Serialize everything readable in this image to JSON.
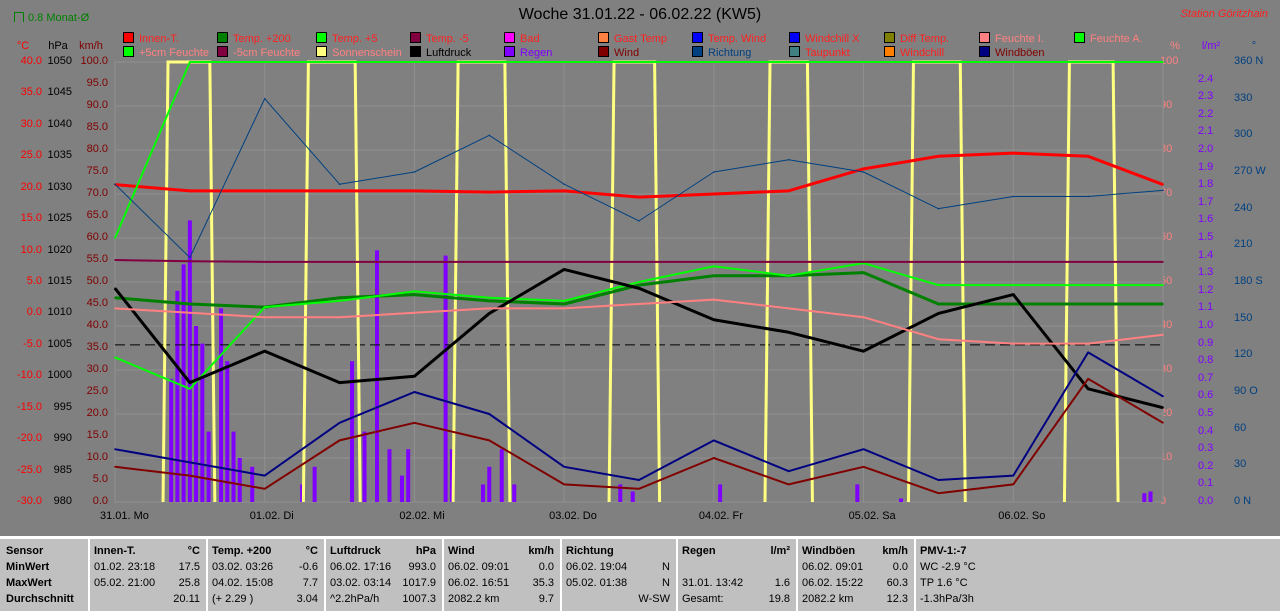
{
  "header": {
    "title": "Woche 31.01.22 - 06.02.22 (KW5)",
    "station": "Station Göritzhain",
    "month_avg": "0.8 Monat-Ø"
  },
  "legend": [
    [
      {
        "label": "Innen-T.",
        "color": "#ff0000",
        "text": "#ff2020"
      },
      {
        "label": "+5cm Feuchte",
        "color": "#00ff00",
        "text": "#ff8080"
      }
    ],
    [
      {
        "label": "Temp. +200",
        "color": "#008000",
        "text": "#ff2020"
      },
      {
        "label": "-5cm Feuchte",
        "color": "#800040",
        "text": "#ff8080"
      }
    ],
    [
      {
        "label": "Temp. +5",
        "color": "#00ff00",
        "text": "#ff2020"
      },
      {
        "label": "Sonnenschein",
        "color": "#ffff80",
        "text": "#ff8080"
      }
    ],
    [
      {
        "label": "Temp. -5",
        "color": "#800040",
        "text": "#ff2020"
      },
      {
        "label": "Luftdruck",
        "color": "#000000",
        "text": "#000000"
      }
    ],
    [
      {
        "label": "Bad",
        "color": "#ff00ff",
        "text": "#ff2020"
      },
      {
        "label": "Regen",
        "color": "#8000ff",
        "text": "#8000ff"
      }
    ],
    [
      {
        "label": "Gast Temp",
        "color": "#ff8040",
        "text": "#ff2020"
      },
      {
        "label": "Wind",
        "color": "#800000",
        "text": "#800000"
      }
    ],
    [
      {
        "label": "Temp. Wind",
        "color": "#0000ff",
        "text": "#ff2020"
      },
      {
        "label": "Richtung",
        "color": "#004080",
        "text": "#004080"
      }
    ],
    [
      {
        "label": "Windchill X",
        "color": "#0000ff",
        "text": "#ff2020"
      },
      {
        "label": "Taupunkt",
        "color": "#408080",
        "text": "#ff2020"
      }
    ],
    [
      {
        "label": "Diff Temp.",
        "color": "#808000",
        "text": "#ff2020"
      },
      {
        "label": "Windchill",
        "color": "#ff8000",
        "text": "#ff2020"
      }
    ],
    [
      {
        "label": "Feuchte I.",
        "color": "#ff8080",
        "text": "#ff8080"
      },
      {
        "label": "Windböen",
        "color": "#000080",
        "text": "#800000"
      }
    ],
    [
      {
        "label": "Feuchte A.",
        "color": "#00ff00",
        "text": "#ff8080"
      }
    ]
  ],
  "axes": {
    "celsius": {
      "unit": "°C",
      "color": "#ff0000",
      "ticks": [
        "40.0",
        "35.0",
        "30.0",
        "25.0",
        "20.0",
        "15.0",
        "10.0",
        "5.0",
        "0.0",
        "-5.0",
        "-10.0",
        "-15.0",
        "-20.0",
        "-25.0",
        "-30.0"
      ],
      "range": [
        -30,
        40
      ]
    },
    "hpa": {
      "unit": "hPa",
      "color": "#000000",
      "ticks": [
        "1050",
        "1045",
        "1040",
        "1035",
        "1030",
        "1025",
        "1020",
        "1015",
        "1010",
        "1005",
        "1000",
        "995",
        "990",
        "985",
        "980"
      ],
      "range": [
        980,
        1050
      ]
    },
    "kmh": {
      "unit": "km/h",
      "color": "#800000",
      "ticks": [
        "100.0",
        "95.0",
        "90.0",
        "85.0",
        "80.0",
        "75.0",
        "70.0",
        "65.0",
        "60.0",
        "55.0",
        "50.0",
        "45.0",
        "40.0",
        "35.0",
        "30.0",
        "25.0",
        "20.0",
        "15.0",
        "10.0",
        "5.0",
        "0.0"
      ],
      "range": [
        0,
        100
      ]
    },
    "percent": {
      "unit": "%",
      "color": "#ff8080",
      "ticks": [
        "100",
        "90",
        "80",
        "70",
        "60",
        "50",
        "40",
        "30",
        "20",
        "10",
        "0"
      ],
      "range": [
        0,
        100
      ]
    },
    "rain": {
      "unit": "l/m²",
      "color": "#8000ff",
      "ticks": [
        "2.4",
        "2.3",
        "2.2",
        "2.1",
        "2.0",
        "1.9",
        "1.8",
        "1.7",
        "1.6",
        "1.5",
        "1.4",
        "1.3",
        "1.2",
        "1.1",
        "1.0",
        "0.9",
        "0.8",
        "0.7",
        "0.6",
        "0.5",
        "0.4",
        "0.3",
        "0.2",
        "0.1",
        "0.0"
      ],
      "range": [
        0,
        2.5
      ]
    },
    "direction": {
      "unit": "°",
      "color": "#004080",
      "ticks": [
        "360 N",
        "330",
        "300",
        "270 W",
        "240",
        "210",
        "180 S",
        "150",
        "120",
        "90 O",
        "60",
        "30",
        "0 N"
      ],
      "range": [
        0,
        360
      ]
    }
  },
  "chart_data": {
    "type": "line",
    "title": "Woche 31.01.22 - 06.02.22 (KW5)",
    "x_unit": "hours since 31.01. 00:00",
    "days": [
      "31.01. Mo",
      "01.02. Di",
      "02.02. Mi",
      "03.02. Do",
      "04.02. Fr",
      "05.02. Sa",
      "06.02. So"
    ],
    "x": [
      0,
      12,
      24,
      36,
      48,
      60,
      72,
      84,
      96,
      108,
      120,
      132,
      144,
      156,
      168
    ],
    "series": [
      {
        "name": "Innen-T.",
        "axis": "celsius",
        "color": "#ff0000",
        "width": 3,
        "values": [
          20.5,
          19.5,
          19.5,
          19.5,
          19.5,
          19.3,
          19.5,
          18.5,
          19,
          19.5,
          23,
          25,
          25.5,
          25,
          20.5
        ]
      },
      {
        "name": "Temp. +200",
        "axis": "celsius",
        "color": "#008000",
        "width": 3,
        "values": [
          2.5,
          1.5,
          1.0,
          2.5,
          3.0,
          2.0,
          1.5,
          4.5,
          6.0,
          6.0,
          6.5,
          1.5,
          1.5,
          1.5,
          1.5
        ]
      },
      {
        "name": "Temp. +5",
        "axis": "celsius",
        "color": "#00ff00",
        "width": 2,
        "values": [
          -7,
          -12,
          1,
          2,
          3.5,
          2.5,
          2,
          5,
          7.5,
          6,
          8,
          4.5,
          4.5,
          4.5,
          4.5
        ]
      },
      {
        "name": "Temp. -5",
        "axis": "celsius",
        "color": "#800040",
        "width": 2,
        "values": [
          8.5,
          8.3,
          8.2,
          8.2,
          8.2,
          8.2,
          8.2,
          8.2,
          8.2,
          8.2,
          8.2,
          8.2,
          8.2,
          8.2,
          8.2
        ]
      },
      {
        "name": "Luftdruck",
        "axis": "hpa",
        "color": "#000000",
        "width": 3,
        "values": [
          1014,
          999,
          1004,
          999,
          1000,
          1010,
          1017,
          1014,
          1009,
          1007,
          1004,
          1010,
          1013,
          998,
          995
        ]
      },
      {
        "name": "Feuchte I.",
        "axis": "percent",
        "color": "#ff8080",
        "width": 2,
        "values": [
          44,
          43,
          42,
          42,
          43,
          44,
          44,
          45,
          46,
          44,
          42,
          37,
          36,
          36,
          38
        ]
      },
      {
        "name": "Feuchte A.",
        "axis": "percent",
        "color": "#00ff00",
        "width": 2,
        "values": [
          60,
          100,
          100,
          100,
          100,
          100,
          100,
          100,
          100,
          100,
          100,
          100,
          100,
          100,
          100
        ]
      },
      {
        "name": "Richtung",
        "axis": "direction",
        "color": "#004080",
        "width": 1,
        "values": [
          260,
          200,
          330,
          260,
          270,
          300,
          260,
          230,
          270,
          280,
          270,
          240,
          250,
          250,
          255
        ]
      },
      {
        "name": "Windböen",
        "axis": "kmh",
        "color": "#000080",
        "width": 2,
        "values": [
          12,
          9,
          6,
          18,
          25,
          20,
          8,
          5,
          14,
          7,
          12,
          5,
          6,
          34,
          24
        ]
      },
      {
        "name": "Wind",
        "axis": "kmh",
        "color": "#800000",
        "width": 2,
        "values": [
          8,
          6,
          3,
          14,
          18,
          14,
          4,
          3,
          10,
          4,
          8,
          2,
          4,
          28,
          18
        ]
      }
    ],
    "sunshine_hours": [
      [
        8.5,
        15.2
      ],
      [
        31,
        38.5
      ],
      [
        55,
        62.5
      ],
      [
        80,
        86.5
      ],
      [
        105,
        111
      ],
      [
        128,
        135.5
      ],
      [
        153,
        160
      ]
    ],
    "rain": {
      "axis": "rain",
      "color": "#8000ff",
      "points": [
        [
          9,
          0.7
        ],
        [
          10,
          1.2
        ],
        [
          11,
          1.35
        ],
        [
          12,
          1.6
        ],
        [
          13,
          1.0
        ],
        [
          14,
          0.9
        ],
        [
          15,
          0.4
        ],
        [
          17,
          1.1
        ],
        [
          18,
          0.8
        ],
        [
          19,
          0.4
        ],
        [
          20,
          0.25
        ],
        [
          22,
          0.2
        ],
        [
          30,
          0.1
        ],
        [
          32,
          0.2
        ],
        [
          38,
          0.8
        ],
        [
          40,
          0.4
        ],
        [
          42,
          1.43
        ],
        [
          44,
          0.3
        ],
        [
          46,
          0.15
        ],
        [
          47,
          0.3
        ],
        [
          53,
          1.4
        ],
        [
          54,
          0.3
        ],
        [
          59,
          0.1
        ],
        [
          60,
          0.2
        ],
        [
          62,
          0.3
        ],
        [
          64,
          0.1
        ],
        [
          81,
          0.1
        ],
        [
          83,
          0.06
        ],
        [
          97,
          0.1
        ],
        [
          119,
          0.1
        ],
        [
          126,
          0.02
        ],
        [
          165,
          0.05
        ],
        [
          166,
          0.06
        ]
      ]
    },
    "reference_line": {
      "axis": "hpa",
      "value": 1005,
      "style": "dashed",
      "color": "#000000"
    },
    "grid": true
  },
  "table": {
    "row_labels": [
      "Sensor",
      "MinWert",
      "MaxWert",
      "Durchschnitt"
    ],
    "columns": [
      {
        "name": "Innen-T.",
        "unit": "°C",
        "rows": [
          [
            "01.02.  23:18",
            "17.5"
          ],
          [
            "05.02.  21:00",
            "25.8"
          ],
          [
            "",
            "20.11"
          ]
        ]
      },
      {
        "name": "Temp. +200",
        "unit": "°C",
        "rows": [
          [
            "03.02.  03:26",
            "-0.6"
          ],
          [
            "04.02.  15:08",
            "7.7"
          ],
          [
            "(+ 2.29 )",
            "3.04"
          ]
        ]
      },
      {
        "name": "Luftdruck",
        "unit": "hPa",
        "rows": [
          [
            "06.02.  17:16",
            "993.0"
          ],
          [
            "03.02.  03:14",
            "1017.9"
          ],
          [
            "^2.2hPa/h",
            "1007.3"
          ]
        ]
      },
      {
        "name": "Wind",
        "unit": "km/h",
        "rows": [
          [
            "06.02.  09:01",
            "0.0"
          ],
          [
            "06.02.  16:51",
            "35.3"
          ],
          [
            "2082.2 km",
            "9.7"
          ]
        ]
      },
      {
        "name": "Richtung",
        "unit": "",
        "rows": [
          [
            "06.02.  19:04",
            "N"
          ],
          [
            "05.02.  01:38",
            "N"
          ],
          [
            "",
            "W-SW"
          ]
        ]
      },
      {
        "name": "Regen",
        "unit": "l/m²",
        "rows": [
          [
            "",
            ""
          ],
          [
            "31.01.  13:42",
            "1.6"
          ],
          [
            "Gesamt:",
            "19.8"
          ]
        ]
      },
      {
        "name": "Windböen",
        "unit": "km/h",
        "rows": [
          [
            "06.02.  09:01",
            "0.0"
          ],
          [
            "06.02.  15:22",
            "60.3"
          ],
          [
            "2082.2 km",
            "12.3"
          ]
        ]
      },
      {
        "name": "PMV-1:-7",
        "unit": "",
        "rows": [
          [
            "WC -2.9 °C",
            ""
          ],
          [
            "TP 1.6 °C",
            ""
          ],
          [
            "-1.3hPa/3h",
            ""
          ]
        ]
      }
    ]
  }
}
